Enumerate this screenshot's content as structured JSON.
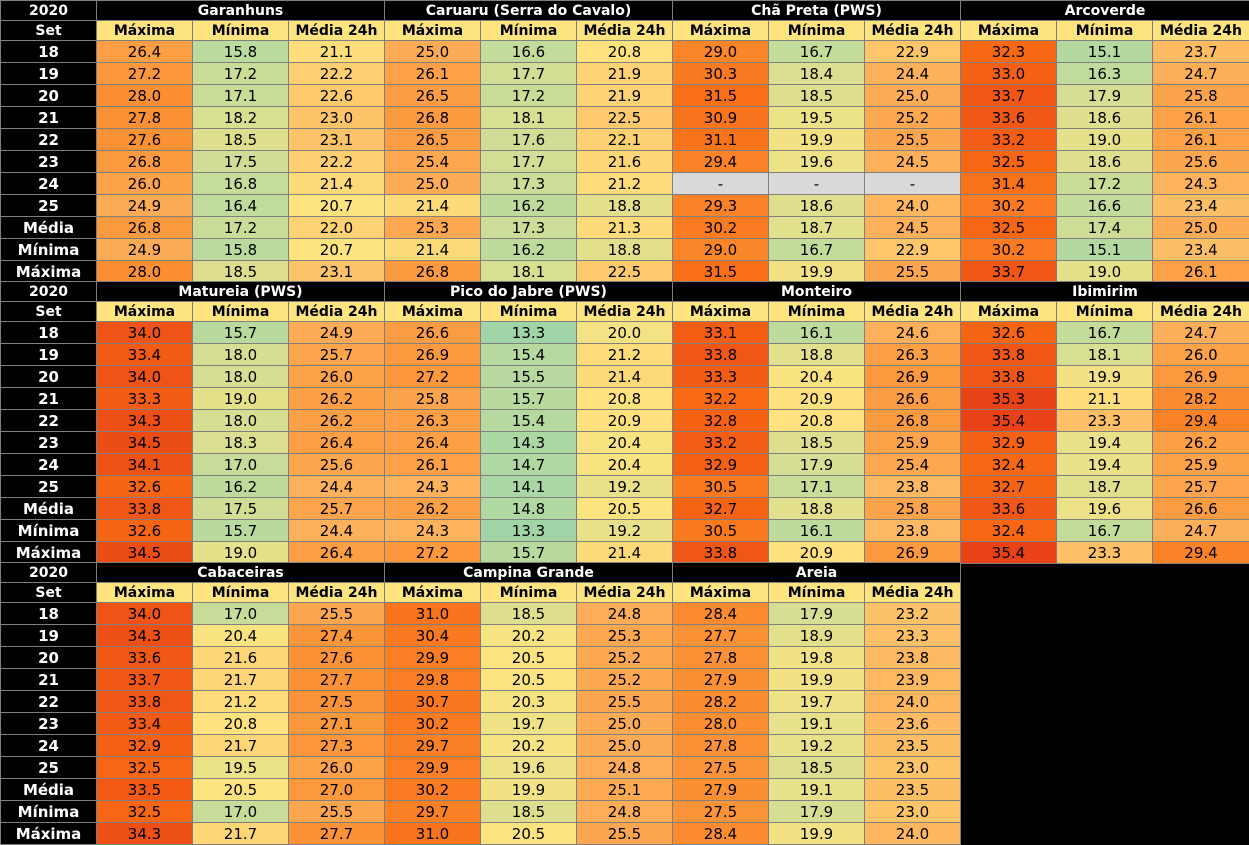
{
  "title_year": "2020",
  "month_label": "Set",
  "column_labels": [
    "Máxima",
    "Mínima",
    "Média 24h"
  ],
  "row_labels": [
    "18",
    "19",
    "20",
    "21",
    "22",
    "23",
    "24",
    "25",
    "Média",
    "Mínima",
    "Máxima"
  ],
  "blocks": [
    {
      "stations": [
        {
          "name": "Garanhuns",
          "rows": [
            [
              "26.4",
              "15.8",
              "21.1"
            ],
            [
              "27.2",
              "17.2",
              "22.2"
            ],
            [
              "28.0",
              "17.1",
              "22.6"
            ],
            [
              "27.8",
              "18.2",
              "23.0"
            ],
            [
              "27.6",
              "18.5",
              "23.1"
            ],
            [
              "26.8",
              "17.5",
              "22.2"
            ],
            [
              "26.0",
              "16.8",
              "21.4"
            ],
            [
              "24.9",
              "16.4",
              "20.7"
            ],
            [
              "26.8",
              "17.2",
              "22.0"
            ],
            [
              "24.9",
              "15.8",
              "20.7"
            ],
            [
              "28.0",
              "18.5",
              "23.1"
            ]
          ]
        },
        {
          "name": "Caruaru (Serra do Cavalo)",
          "rows": [
            [
              "25.0",
              "16.6",
              "20.8"
            ],
            [
              "26.1",
              "17.7",
              "21.9"
            ],
            [
              "26.5",
              "17.2",
              "21.9"
            ],
            [
              "26.8",
              "18.1",
              "22.5"
            ],
            [
              "26.5",
              "17.6",
              "22.1"
            ],
            [
              "25.4",
              "17.7",
              "21.6"
            ],
            [
              "25.0",
              "17.3",
              "21.2"
            ],
            [
              "21.4",
              "16.2",
              "18.8"
            ],
            [
              "25.3",
              "17.3",
              "21.3"
            ],
            [
              "21.4",
              "16.2",
              "18.8"
            ],
            [
              "26.8",
              "18.1",
              "22.5"
            ]
          ]
        },
        {
          "name": "Chã Preta (PWS)",
          "rows": [
            [
              "29.0",
              "16.7",
              "22.9"
            ],
            [
              "30.3",
              "18.4",
              "24.4"
            ],
            [
              "31.5",
              "18.5",
              "25.0"
            ],
            [
              "30.9",
              "19.5",
              "25.2"
            ],
            [
              "31.1",
              "19.9",
              "25.5"
            ],
            [
              "29.4",
              "19.6",
              "24.5"
            ],
            [
              "-",
              "-",
              "-"
            ],
            [
              "29.3",
              "18.6",
              "24.0"
            ],
            [
              "30.2",
              "18.7",
              "24.5"
            ],
            [
              "29.0",
              "16.7",
              "22.9"
            ],
            [
              "31.5",
              "19.9",
              "25.5"
            ]
          ]
        },
        {
          "name": "Arcoverde",
          "rows": [
            [
              "32.3",
              "15.1",
              "23.7"
            ],
            [
              "33.0",
              "16.3",
              "24.7"
            ],
            [
              "33.7",
              "17.9",
              "25.8"
            ],
            [
              "33.6",
              "18.6",
              "26.1"
            ],
            [
              "33.2",
              "19.0",
              "26.1"
            ],
            [
              "32.5",
              "18.6",
              "25.6"
            ],
            [
              "31.4",
              "17.2",
              "24.3"
            ],
            [
              "30.2",
              "16.6",
              "23.4"
            ],
            [
              "32.5",
              "17.4",
              "25.0"
            ],
            [
              "30.2",
              "15.1",
              "23.4"
            ],
            [
              "33.7",
              "19.0",
              "26.1"
            ]
          ]
        }
      ]
    },
    {
      "stations": [
        {
          "name": "Matureia (PWS)",
          "rows": [
            [
              "34.0",
              "15.7",
              "24.9"
            ],
            [
              "33.4",
              "18.0",
              "25.7"
            ],
            [
              "34.0",
              "18.0",
              "26.0"
            ],
            [
              "33.3",
              "19.0",
              "26.2"
            ],
            [
              "34.3",
              "18.0",
              "26.2"
            ],
            [
              "34.5",
              "18.3",
              "26.4"
            ],
            [
              "34.1",
              "17.0",
              "25.6"
            ],
            [
              "32.6",
              "16.2",
              "24.4"
            ],
            [
              "33.8",
              "17.5",
              "25.7"
            ],
            [
              "32.6",
              "15.7",
              "24.4"
            ],
            [
              "34.5",
              "19.0",
              "26.4"
            ]
          ]
        },
        {
          "name": "Pico do Jabre (PWS)",
          "rows": [
            [
              "26.6",
              "13.3",
              "20.0"
            ],
            [
              "26.9",
              "15.4",
              "21.2"
            ],
            [
              "27.2",
              "15.5",
              "21.4"
            ],
            [
              "25.8",
              "15.7",
              "20.8"
            ],
            [
              "26.3",
              "15.4",
              "20.9"
            ],
            [
              "26.4",
              "14.3",
              "20.4"
            ],
            [
              "26.1",
              "14.7",
              "20.4"
            ],
            [
              "24.3",
              "14.1",
              "19.2"
            ],
            [
              "26.2",
              "14.8",
              "20.5"
            ],
            [
              "24.3",
              "13.3",
              "19.2"
            ],
            [
              "27.2",
              "15.7",
              "21.4"
            ]
          ]
        },
        {
          "name": "Monteiro",
          "rows": [
            [
              "33.1",
              "16.1",
              "24.6"
            ],
            [
              "33.8",
              "18.8",
              "26.3"
            ],
            [
              "33.3",
              "20.4",
              "26.9"
            ],
            [
              "32.2",
              "20.9",
              "26.6"
            ],
            [
              "32.8",
              "20.8",
              "26.8"
            ],
            [
              "33.2",
              "18.5",
              "25.9"
            ],
            [
              "32.9",
              "17.9",
              "25.4"
            ],
            [
              "30.5",
              "17.1",
              "23.8"
            ],
            [
              "32.7",
              "18.8",
              "25.8"
            ],
            [
              "30.5",
              "16.1",
              "23.8"
            ],
            [
              "33.8",
              "20.9",
              "26.9"
            ]
          ]
        },
        {
          "name": "Ibimirim",
          "rows": [
            [
              "32.6",
              "16.7",
              "24.7"
            ],
            [
              "33.8",
              "18.1",
              "26.0"
            ],
            [
              "33.8",
              "19.9",
              "26.9"
            ],
            [
              "35.3",
              "21.1",
              "28.2"
            ],
            [
              "35.4",
              "23.3",
              "29.4"
            ],
            [
              "32.9",
              "19.4",
              "26.2"
            ],
            [
              "32.4",
              "19.4",
              "25.9"
            ],
            [
              "32.7",
              "18.7",
              "25.7"
            ],
            [
              "33.6",
              "19.6",
              "26.6"
            ],
            [
              "32.4",
              "16.7",
              "24.7"
            ],
            [
              "35.4",
              "23.3",
              "29.4"
            ]
          ]
        }
      ]
    },
    {
      "stations": [
        {
          "name": "Cabaceiras",
          "rows": [
            [
              "34.0",
              "17.0",
              "25.5"
            ],
            [
              "34.3",
              "20.4",
              "27.4"
            ],
            [
              "33.6",
              "21.6",
              "27.6"
            ],
            [
              "33.7",
              "21.7",
              "27.7"
            ],
            [
              "33.8",
              "21.2",
              "27.5"
            ],
            [
              "33.4",
              "20.8",
              "27.1"
            ],
            [
              "32.9",
              "21.7",
              "27.3"
            ],
            [
              "32.5",
              "19.5",
              "26.0"
            ],
            [
              "33.5",
              "20.5",
              "27.0"
            ],
            [
              "32.5",
              "17.0",
              "25.5"
            ],
            [
              "34.3",
              "21.7",
              "27.7"
            ]
          ]
        },
        {
          "name": "Campina Grande",
          "rows": [
            [
              "31.0",
              "18.5",
              "24.8"
            ],
            [
              "30.4",
              "20.2",
              "25.3"
            ],
            [
              "29.9",
              "20.5",
              "25.2"
            ],
            [
              "29.8",
              "20.5",
              "25.2"
            ],
            [
              "30.7",
              "20.3",
              "25.5"
            ],
            [
              "30.2",
              "19.7",
              "25.0"
            ],
            [
              "29.7",
              "20.2",
              "25.0"
            ],
            [
              "29.9",
              "19.6",
              "24.8"
            ],
            [
              "30.2",
              "19.9",
              "25.1"
            ],
            [
              "29.7",
              "18.5",
              "24.8"
            ],
            [
              "31.0",
              "20.5",
              "25.5"
            ]
          ]
        },
        {
          "name": "Areia",
          "rows": [
            [
              "28.4",
              "17.9",
              "23.2"
            ],
            [
              "27.7",
              "18.9",
              "23.3"
            ],
            [
              "27.8",
              "19.8",
              "23.8"
            ],
            [
              "27.9",
              "19.9",
              "23.9"
            ],
            [
              "28.2",
              "19.7",
              "24.0"
            ],
            [
              "28.0",
              "19.1",
              "23.6"
            ],
            [
              "27.8",
              "19.2",
              "23.5"
            ],
            [
              "27.5",
              "18.5",
              "23.0"
            ],
            [
              "27.9",
              "19.1",
              "23.5"
            ],
            [
              "27.5",
              "17.9",
              "23.0"
            ],
            [
              "28.4",
              "19.9",
              "24.0"
            ]
          ]
        }
      ]
    }
  ],
  "colors": {
    "background": "#000000",
    "header_text": "#ffffff",
    "grid_line": "#7f7f7f",
    "missing_fill": "#d9d9d9",
    "scale": [
      "#9ed4a8",
      "#c5dc9a",
      "#fde47f",
      "#fdb05a",
      "#fb8c2e",
      "#f86a14",
      "#e53a16"
    ]
  }
}
